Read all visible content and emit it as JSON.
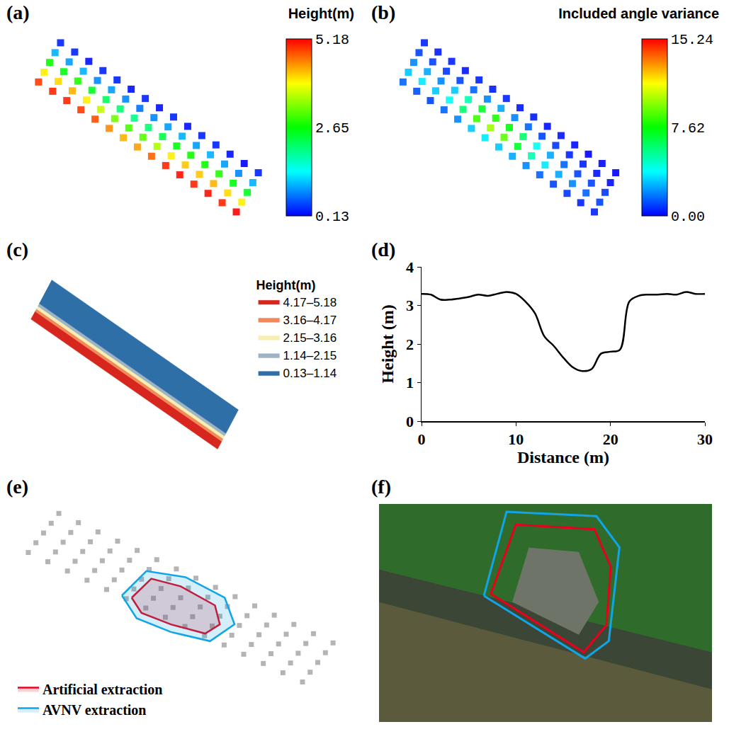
{
  "chart_data": [
    {
      "panel": "(a)",
      "type": "scatter",
      "colorbar_title": "Height(m)",
      "x": [
        0.44,
        1.22,
        2,
        2.78,
        3.56,
        2.44,
        3.22,
        4,
        4.78,
        5.56,
        4.44,
        5.22,
        6,
        6.78,
        7.56,
        6.44,
        7.22,
        8,
        8.78,
        9.56,
        8.44,
        9.22,
        10,
        10.78,
        11.56,
        10.44,
        11.22,
        12,
        12.78,
        13.56,
        12.44,
        13.22,
        14,
        14.78,
        15.56,
        14.44,
        15.22,
        16,
        16.78,
        17.56,
        16.44,
        17.22,
        18,
        18.78,
        19.56,
        18.44,
        19.22,
        20,
        20.78,
        21.56,
        20.44,
        21.22,
        22,
        22.78,
        23.56,
        22.44,
        23.22,
        24,
        24.78,
        25.56,
        24.44,
        25.22,
        26,
        26.78,
        27.56,
        26.44,
        27.22,
        28,
        28.78,
        29.56,
        28.44,
        29.22,
        30,
        30.78,
        31.56
      ],
      "y": [
        18.44,
        19.72,
        21,
        22.28,
        23.57,
        17.23,
        18.51,
        19.79,
        21.07,
        22.36,
        16.01,
        17.29,
        18.57,
        19.85,
        21.14,
        14.8,
        16.08,
        17.36,
        18.64,
        19.93,
        13.58,
        14.86,
        16.14,
        17.42,
        18.71,
        12.37,
        13.65,
        14.93,
        16.21,
        17.5,
        11.15,
        12.43,
        13.71,
        14.99,
        16.28,
        9.94,
        11.22,
        12.5,
        13.78,
        15.07,
        8.73,
        10.01,
        11.29,
        12.57,
        13.86,
        7.51,
        8.79,
        10.07,
        11.35,
        12.64,
        6.3,
        7.58,
        8.86,
        10.14,
        11.43,
        5.08,
        6.36,
        7.64,
        8.92,
        10.21,
        3.87,
        5.15,
        6.43,
        7.71,
        9,
        2.65,
        3.93,
        5.21,
        6.49,
        7.78,
        1.44,
        2.72,
        4,
        5.28,
        6.57
      ],
      "values": [
        4.9,
        4.0,
        2.7,
        1.0,
        0.3,
        5.0,
        4.1,
        2.6,
        0.9,
        0.3,
        5.0,
        4.3,
        2.8,
        1.0,
        0.2,
        4.9,
        4.0,
        2.5,
        0.8,
        0.3,
        4.8,
        3.6,
        2.2,
        0.9,
        0.3,
        4.5,
        3.2,
        2.1,
        0.8,
        0.2,
        4.3,
        3.0,
        2.0,
        0.7,
        0.3,
        4.4,
        3.1,
        2.1,
        0.8,
        0.2,
        4.7,
        3.5,
        2.3,
        0.9,
        0.3,
        5.0,
        4.0,
        2.6,
        1.0,
        0.2,
        5.1,
        4.2,
        2.7,
        0.9,
        0.3,
        5.0,
        4.2,
        2.7,
        1.0,
        0.3,
        5.1,
        4.3,
        2.8,
        0.9,
        0.2,
        5.0,
        4.1,
        2.6,
        0.8,
        0.13,
        5.18,
        4.0,
        2.5,
        1.0,
        0.3
      ],
      "color_range": [
        0.13,
        5.18
      ],
      "color_ticks": [
        0.13,
        2.65,
        5.18
      ],
      "xlim": [
        -1,
        33
      ],
      "ylim": [
        0,
        25
      ],
      "tick_labels": false
    },
    {
      "panel": "(b)",
      "type": "scatter",
      "colorbar_title": "Included angle variance",
      "x": [
        0.44,
        1.22,
        2,
        2.78,
        3.56,
        2.44,
        3.22,
        4,
        4.78,
        5.56,
        4.44,
        5.22,
        6,
        6.78,
        7.56,
        6.44,
        7.22,
        8,
        8.78,
        9.56,
        8.44,
        9.22,
        10,
        10.78,
        11.56,
        10.44,
        11.22,
        12,
        12.78,
        13.56,
        12.44,
        13.22,
        14,
        14.78,
        15.56,
        14.44,
        15.22,
        16,
        16.78,
        17.56,
        16.44,
        17.22,
        18,
        18.78,
        19.56,
        18.44,
        19.22,
        20,
        20.78,
        21.56,
        20.44,
        21.22,
        22,
        22.78,
        23.56,
        22.44,
        23.22,
        24,
        24.78,
        25.56,
        24.44,
        25.22,
        26,
        26.78,
        27.56,
        26.44,
        27.22,
        28,
        28.78,
        29.56,
        28.44,
        29.22,
        30,
        30.78,
        31.56
      ],
      "y": [
        18.44,
        19.72,
        21,
        22.28,
        23.57,
        17.23,
        18.51,
        19.79,
        21.07,
        22.36,
        16.01,
        17.29,
        18.57,
        19.85,
        21.14,
        14.8,
        16.08,
        17.36,
        18.64,
        19.93,
        13.58,
        14.86,
        16.14,
        17.42,
        18.71,
        12.37,
        13.65,
        14.93,
        16.21,
        17.5,
        11.15,
        12.43,
        13.71,
        14.99,
        16.28,
        9.94,
        11.22,
        12.5,
        13.78,
        15.07,
        8.73,
        10.01,
        11.29,
        12.57,
        13.86,
        7.51,
        8.79,
        10.07,
        11.35,
        12.64,
        6.3,
        7.58,
        8.86,
        10.14,
        11.43,
        5.08,
        6.36,
        7.64,
        8.92,
        10.21,
        3.87,
        5.15,
        6.43,
        7.71,
        9,
        2.65,
        3.93,
        5.21,
        6.49,
        7.78,
        1.44,
        2.72,
        4,
        5.28,
        6.57
      ],
      "values": [
        1.5,
        3.0,
        2.0,
        1.0,
        0.5,
        1.2,
        3.5,
        2.5,
        1.0,
        0.4,
        1.0,
        3.0,
        2.0,
        0.8,
        0.5,
        1.5,
        4.0,
        3.0,
        1.0,
        0.3,
        2.0,
        6.0,
        5.0,
        1.5,
        0.5,
        3.0,
        8.5,
        7.0,
        2.0,
        0.4,
        3.5,
        10.0,
        8.0,
        2.5,
        0.5,
        3.0,
        9.0,
        7.5,
        2.0,
        0.3,
        2.5,
        7.0,
        6.0,
        1.5,
        0.4,
        2.0,
        5.0,
        4.0,
        1.0,
        0.2,
        1.5,
        3.5,
        2.5,
        0.8,
        0.3,
        1.0,
        2.5,
        1.5,
        0.5,
        0.2,
        0.8,
        2.0,
        1.0,
        0.5,
        0.0,
        0.5,
        1.5,
        1.0,
        0.3,
        0.1,
        0.5,
        1.0,
        0.8,
        0.2,
        0.0
      ],
      "color_range": [
        0,
        15.24
      ],
      "color_ticks": [
        {
          "value": 0,
          "label": "0.00"
        },
        7.62,
        15.24
      ],
      "xlim": [
        -1,
        33
      ],
      "ylim": [
        0,
        25
      ],
      "tick_labels": false
    },
    {
      "panel": "(c)",
      "type": "polygon",
      "legend_title": "Height(m)",
      "legend": "right",
      "series": [
        {
          "name": "4.17–5.18",
          "color": "#d7261e",
          "x": [
            0.44,
            28.44,
            29.07,
            1.07
          ],
          "y": [
            18.44,
            1.44,
            2.46,
            19.46
          ]
        },
        {
          "name": "3.16–4.17",
          "color": "#f08a5d",
          "x": [
            1.07,
            29.07,
            29.27,
            1.27
          ],
          "y": [
            19.46,
            2.46,
            2.8,
            19.8
          ]
        },
        {
          "name": "2.15–3.16",
          "color": "#f7eeb0",
          "x": [
            1.27,
            29.27,
            29.48,
            1.48
          ],
          "y": [
            19.8,
            2.8,
            3.15,
            20.15
          ]
        },
        {
          "name": "1.14–2.15",
          "color": "#9fb3c6",
          "x": [
            1.48,
            29.48,
            29.69,
            1.69
          ],
          "y": [
            20.15,
            3.15,
            3.49,
            20.49
          ]
        },
        {
          "name": "0.13–1.14",
          "color": "#2f6fa8",
          "x": [
            1.69,
            29.69,
            31.56,
            3.56
          ],
          "y": [
            20.49,
            3.49,
            6.57,
            23.57
          ]
        }
      ],
      "xlim": [
        -1,
        33
      ],
      "ylim": [
        0,
        25
      ],
      "tick_labels": false
    },
    {
      "panel": "(d)",
      "type": "line",
      "color": "#000000",
      "x_label": "Distance (m)",
      "y_label": "Height (m)",
      "x": [
        0,
        1,
        2,
        3,
        4,
        5,
        6,
        7,
        8,
        9,
        10,
        11,
        12,
        13,
        14,
        15,
        16,
        17,
        18,
        19,
        20,
        21,
        22,
        23,
        24,
        25,
        26,
        27,
        28,
        29,
        30
      ],
      "values": [
        3.3,
        3.28,
        3.15,
        3.15,
        3.18,
        3.22,
        3.28,
        3.25,
        3.3,
        3.35,
        3.3,
        3.1,
        2.8,
        2.2,
        1.95,
        1.65,
        1.4,
        1.3,
        1.35,
        1.75,
        1.8,
        1.85,
        3.1,
        3.25,
        3.28,
        3.28,
        3.3,
        3.28,
        3.35,
        3.3,
        3.3
      ],
      "xlim": [
        0,
        30
      ],
      "ylim": [
        0,
        4
      ],
      "xticks": [
        0,
        10,
        20,
        30
      ],
      "yticks": [
        0,
        1,
        2,
        3,
        4
      ],
      "grid": false
    },
    {
      "panel": "(e)",
      "type": "scatter",
      "color": "#b4b4b4",
      "legend": "bottom left",
      "x": [
        0.44,
        1.22,
        2,
        2.78,
        3.56,
        2.44,
        3.22,
        4,
        4.78,
        5.56,
        4.44,
        5.22,
        6,
        6.78,
        7.56,
        6.44,
        7.22,
        8,
        8.78,
        9.56,
        8.44,
        9.22,
        10,
        10.78,
        11.56,
        10.44,
        11.22,
        12,
        12.78,
        13.56,
        12.44,
        13.22,
        14,
        14.78,
        15.56,
        14.44,
        15.22,
        16,
        16.78,
        17.56,
        16.44,
        17.22,
        18,
        18.78,
        19.56,
        18.44,
        19.22,
        20,
        20.78,
        21.56,
        20.44,
        21.22,
        22,
        22.78,
        23.56,
        22.44,
        23.22,
        24,
        24.78,
        25.56,
        24.44,
        25.22,
        26,
        26.78,
        27.56,
        26.44,
        27.22,
        28,
        28.78,
        29.56,
        28.44,
        29.22,
        30,
        30.78,
        31.56
      ],
      "y": [
        18.44,
        19.72,
        21,
        22.28,
        23.57,
        17.23,
        18.51,
        19.79,
        21.07,
        22.36,
        16.01,
        17.29,
        18.57,
        19.85,
        21.14,
        14.8,
        16.08,
        17.36,
        18.64,
        19.93,
        13.58,
        14.86,
        16.14,
        17.42,
        18.71,
        12.37,
        13.65,
        14.93,
        16.21,
        17.5,
        11.15,
        12.43,
        13.71,
        14.99,
        16.28,
        9.94,
        11.22,
        12.5,
        13.78,
        15.07,
        8.73,
        10.01,
        11.29,
        12.57,
        13.86,
        7.51,
        8.79,
        10.07,
        11.35,
        12.64,
        6.3,
        7.58,
        8.86,
        10.14,
        11.43,
        5.08,
        6.36,
        7.64,
        8.92,
        10.21,
        3.87,
        5.15,
        6.43,
        7.71,
        9,
        2.65,
        3.93,
        5.21,
        6.49,
        7.78,
        1.44,
        2.72,
        4,
        5.28,
        6.57
      ],
      "series": [
        {
          "name": "Artificial extraction",
          "color": "#e8001c",
          "x": [
            11.0,
            13.0,
            16.0,
            19.5,
            20.0,
            18.5,
            15.0,
            12.0,
            11.0
          ],
          "y": [
            12.5,
            15.0,
            14.0,
            11.5,
            9.0,
            7.8,
            9.0,
            10.5,
            12.5
          ]
        },
        {
          "name": "AVNV extraction",
          "color": "#12a5e6",
          "x": [
            10.0,
            12.5,
            16.5,
            20.5,
            21.5,
            19.0,
            15.0,
            11.5,
            10.0
          ],
          "y": [
            12.8,
            16.0,
            15.2,
            12.5,
            9.0,
            6.8,
            8.0,
            9.8,
            12.8
          ]
        }
      ],
      "xlim": [
        -1,
        33
      ],
      "ylim": [
        -4,
        25
      ],
      "tick_labels": false
    },
    {
      "panel": "(f)",
      "type": "outline",
      "series": [
        {
          "color": "#e8001c",
          "x": [
            33.6,
            41.1,
            64.7,
            69.6,
            68.3,
            61.5,
            33.6
          ],
          "y": [
            58.8,
            90.5,
            88.4,
            71.2,
            44.5,
            32.0,
            58.8
          ]
        },
        {
          "color": "#12a5e6",
          "x": [
            31.5,
            38.3,
            65.3,
            72.2,
            69.0,
            61.9,
            31.5
          ],
          "y": [
            57.9,
            96.4,
            94.4,
            80.1,
            37.1,
            29.1,
            57.9
          ]
        }
      ],
      "xlim": [
        0,
        100
      ],
      "ylim": [
        0,
        100
      ],
      "tick_labels": false
    }
  ]
}
